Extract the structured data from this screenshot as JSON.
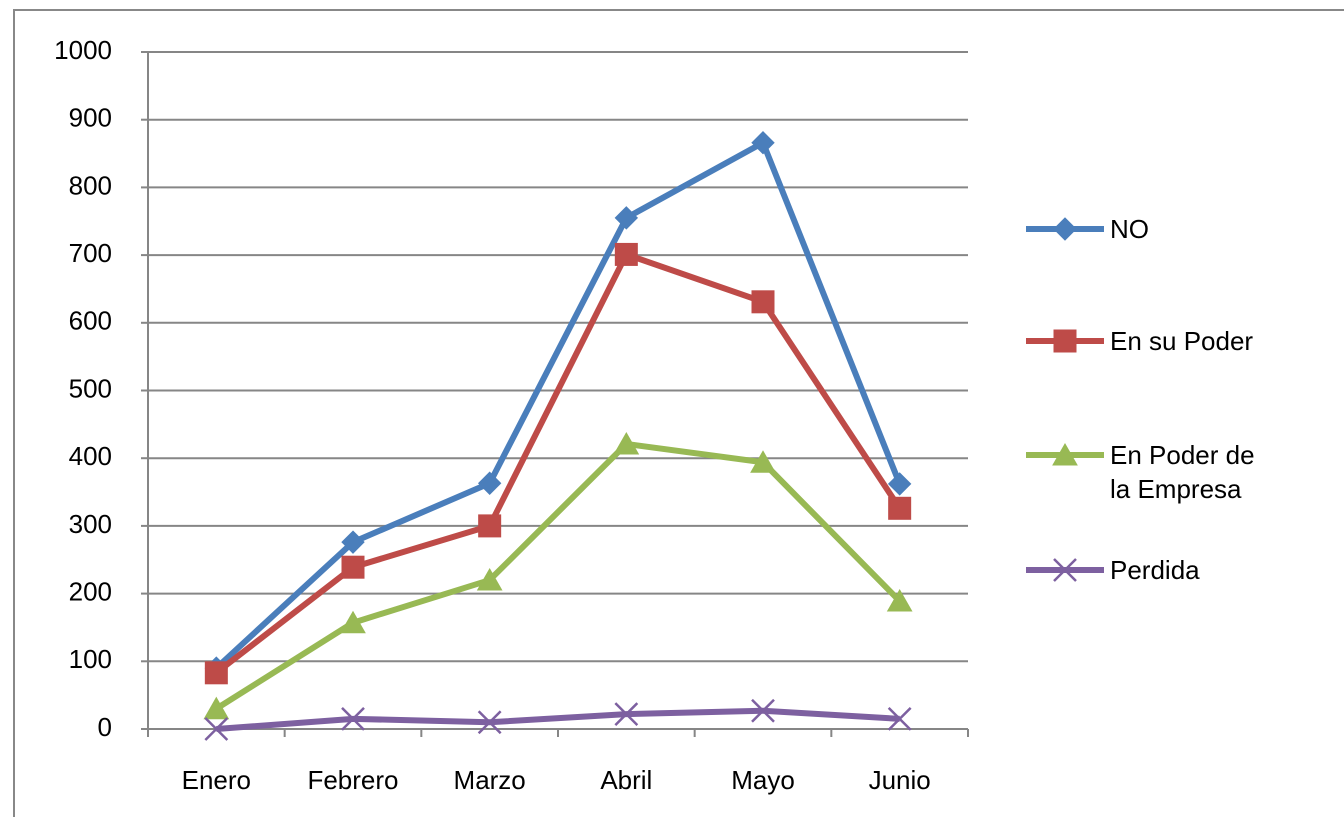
{
  "chart_data": {
    "type": "line",
    "categories": [
      "Enero",
      "Febrero",
      "Marzo",
      "Abril",
      "Mayo",
      "Junio"
    ],
    "series": [
      {
        "name": "NO",
        "color": "#4a7ebb",
        "marker": "diamond",
        "values": [
          90,
          276,
          363,
          755,
          866,
          362
        ]
      },
      {
        "name": "En su Poder",
        "color": "#be4b48",
        "marker": "square",
        "values": [
          83,
          239,
          300,
          701,
          631,
          326
        ]
      },
      {
        "name": "En Poder de la Empresa",
        "color": "#98b954",
        "marker": "triangle",
        "values": [
          30,
          157,
          220,
          421,
          394,
          189
        ]
      },
      {
        "name": "Perdida",
        "color": "#7d60a0",
        "marker": "x",
        "values": [
          0,
          15,
          10,
          22,
          27,
          15
        ]
      }
    ],
    "ylim": [
      0,
      1000
    ],
    "yticks": [
      0,
      100,
      200,
      300,
      400,
      500,
      600,
      700,
      800,
      900,
      1000
    ],
    "grid": true,
    "legend": "right"
  }
}
